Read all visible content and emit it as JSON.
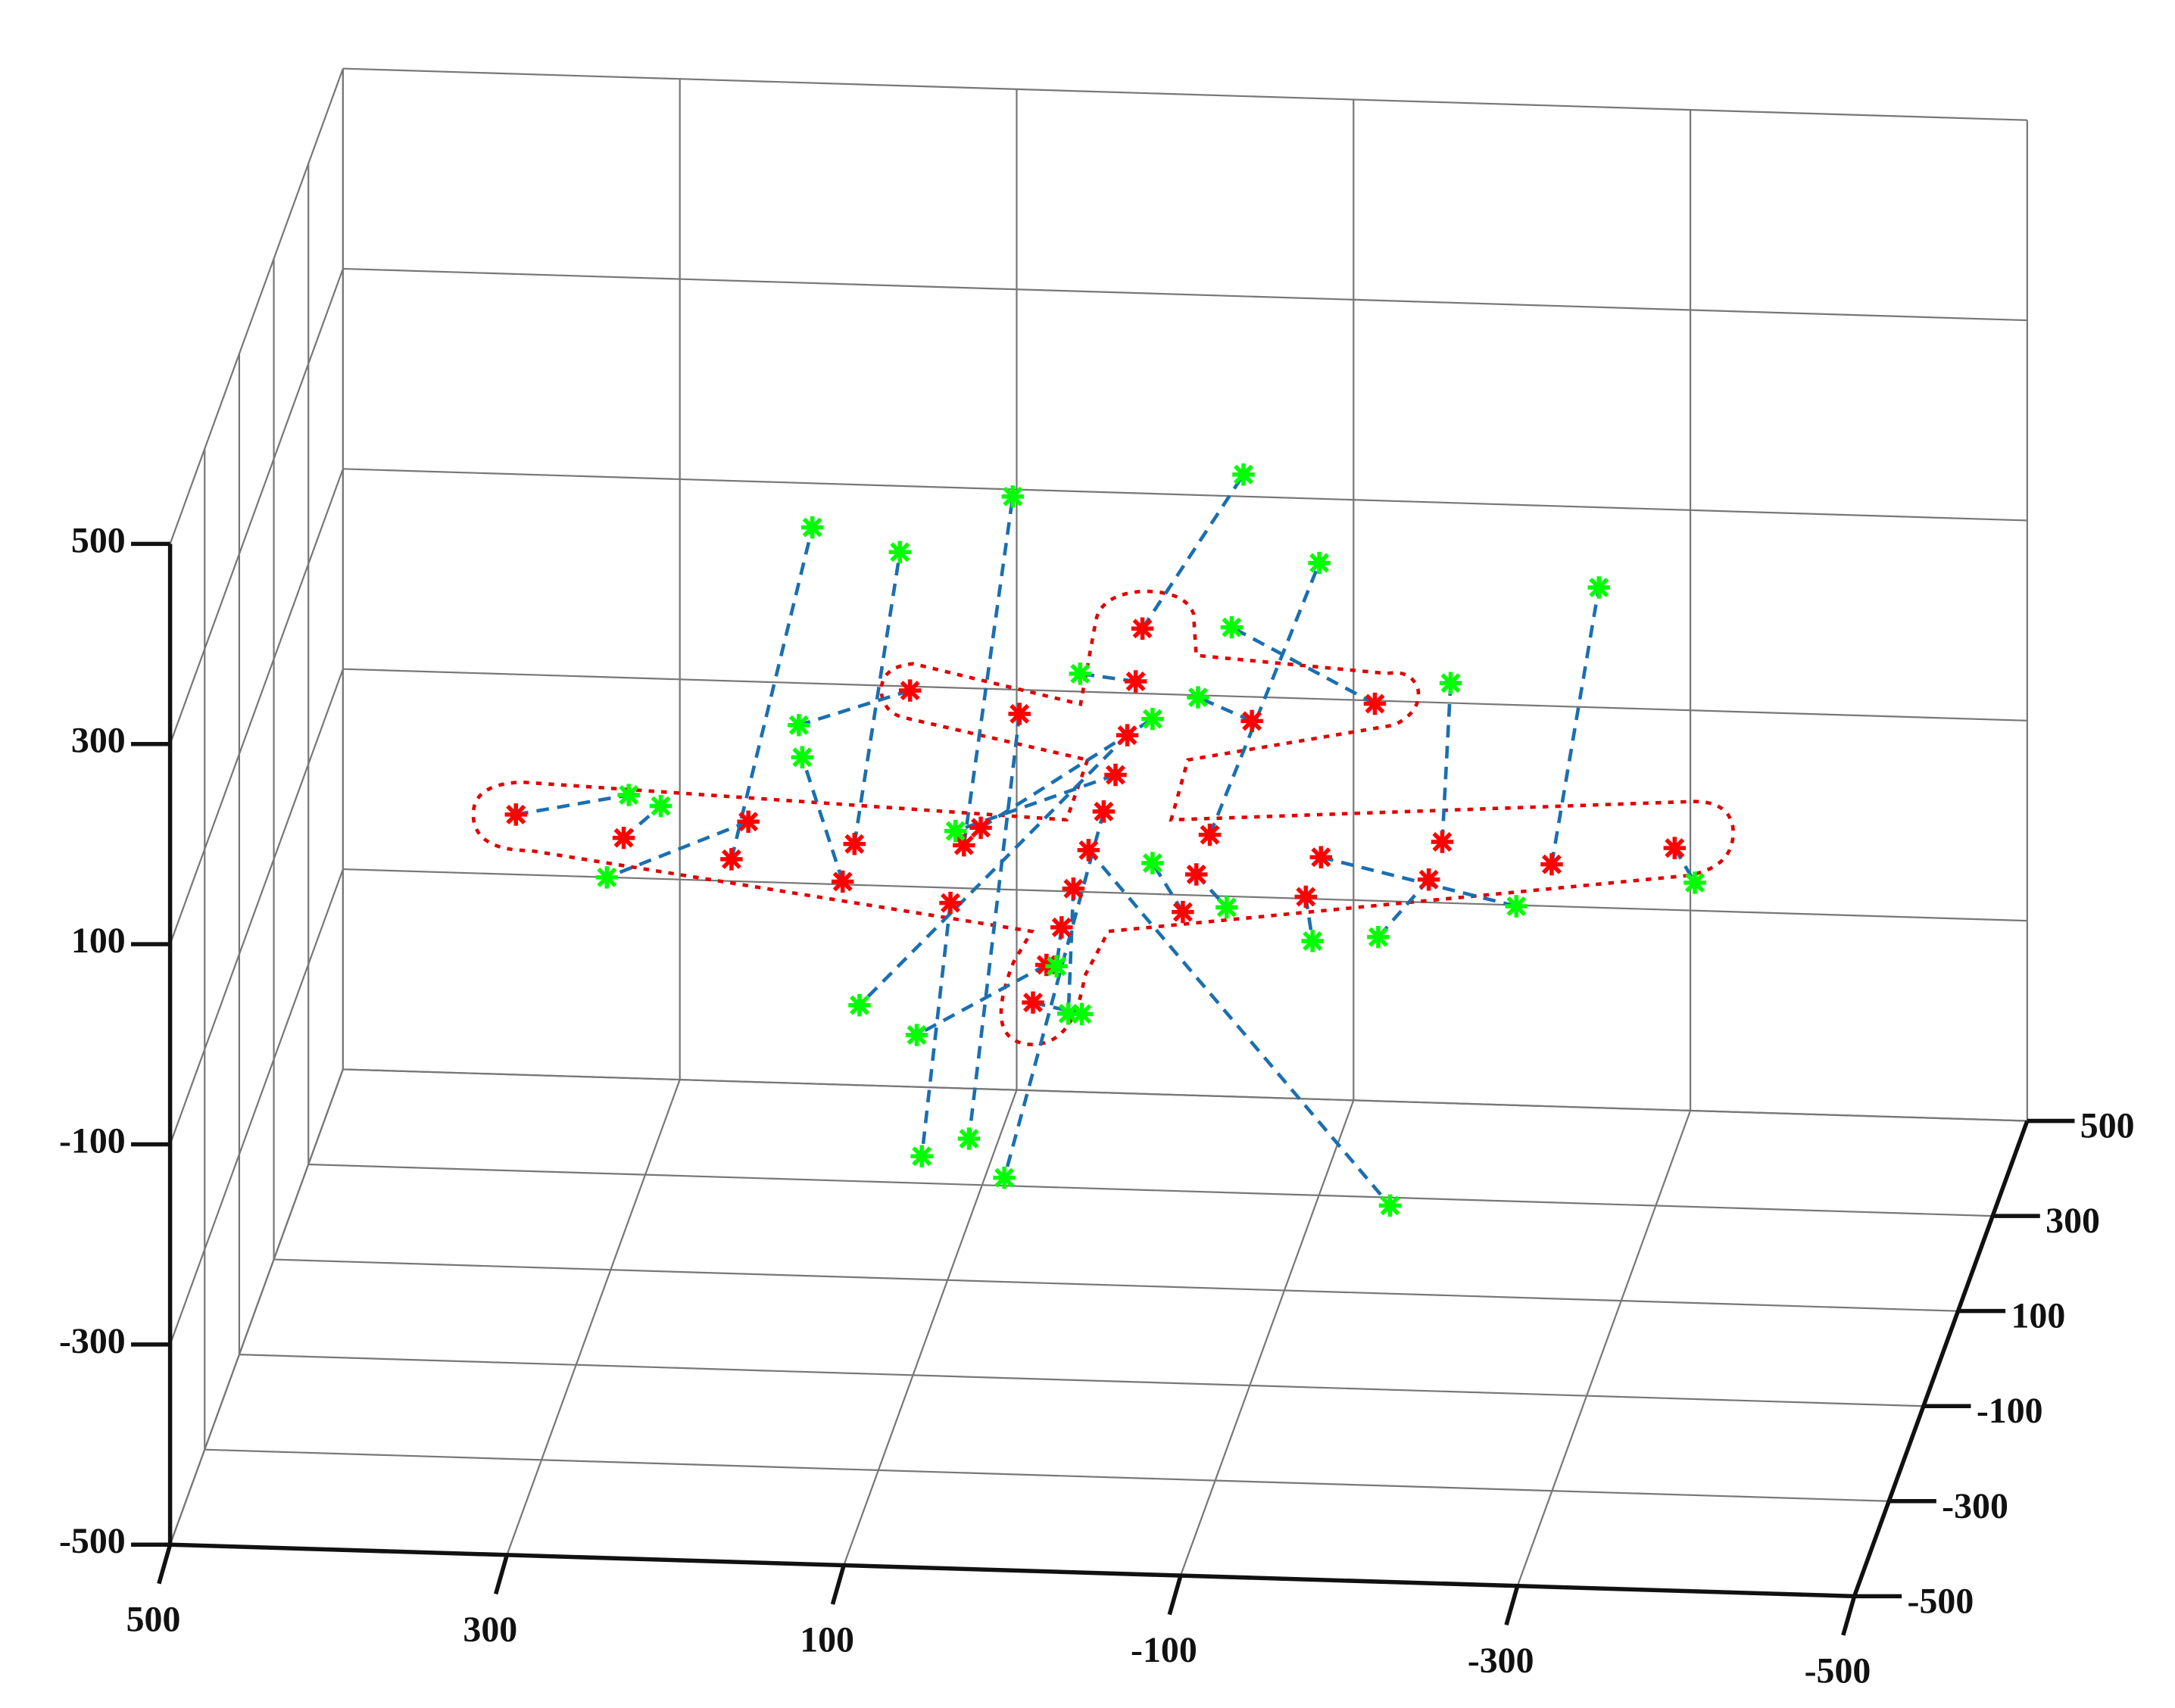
{
  "chart_data": {
    "type": "scatter3d",
    "xlim": [
      500,
      -500
    ],
    "ylim": [
      -500,
      500
    ],
    "zlim": [
      -500,
      500
    ],
    "xticks": [
      500,
      300,
      100,
      -100,
      -300,
      -500
    ],
    "yticks": [
      -500,
      -300,
      -100,
      100,
      300,
      500
    ],
    "zticks": [
      -500,
      -300,
      -100,
      100,
      300,
      500
    ],
    "grid": true,
    "connector_color": "#1a6fb0",
    "series": [
      {
        "color": "#ff0000",
        "x": [
          346,
          282,
          208,
          218,
          145,
          152,
          112,
          47,
          80,
          70,
          88,
          -26,
          -22,
          -17,
          -10,
          -3,
          6,
          15,
          22,
          31,
          39,
          -91,
          -164,
          -66,
          -58,
          -50,
          -132,
          -123,
          -204,
          -196,
          -269,
          -342
        ],
        "y": [
          0,
          0,
          0,
          0,
          0,
          0,
          0,
          0,
          0,
          0,
          0,
          0,
          0,
          0,
          0,
          0,
          0,
          0,
          0,
          0,
          0,
          0,
          0,
          0,
          0,
          0,
          0,
          0,
          0,
          0,
          0,
          0
        ],
        "z": [
          0,
          -20,
          0,
          -38,
          -19,
          -57,
          136,
          116,
          -17,
          1,
          -75,
          205,
          152,
          98,
          58,
          21,
          -18,
          -57,
          -96,
          -134,
          -172,
          116,
          137,
          1,
          -39,
          -77,
          -18,
          -58,
          1,
          -37,
          -18,
          2
        ]
      },
      {
        "color": "#00ff00",
        "x": [
          279,
          260,
          292,
          170,
          118,
          176,
          178,
          77,
          51,
          -32,
          105,
          -86,
          11,
          142,
          85,
          56,
          -173,
          18,
          25,
          108,
          10,
          -59,
          -79,
          -131,
          -76,
          -32,
          -248,
          -127,
          -209,
          -166,
          -297,
          -354
        ],
        "y": [
          0,
          0,
          0,
          0,
          0,
          0,
          0,
          0,
          0,
          0,
          0,
          0,
          0,
          0,
          0,
          0,
          0,
          0,
          0,
          0,
          0,
          0,
          0,
          0,
          0,
          0,
          0,
          0,
          0,
          0,
          0,
          0
        ],
        "z": [
          23,
          13,
          -60,
          296,
          274,
          66,
          98,
          -310,
          333,
          115,
          -329,
          362,
          158,
          -180,
          -3,
          -348,
          -364,
          -182,
          -135,
          -208,
          -182,
          138,
          209,
          276,
          -71,
          -29,
          -61,
          -102,
          160,
          -96,
          260,
          -32
        ]
      }
    ]
  }
}
